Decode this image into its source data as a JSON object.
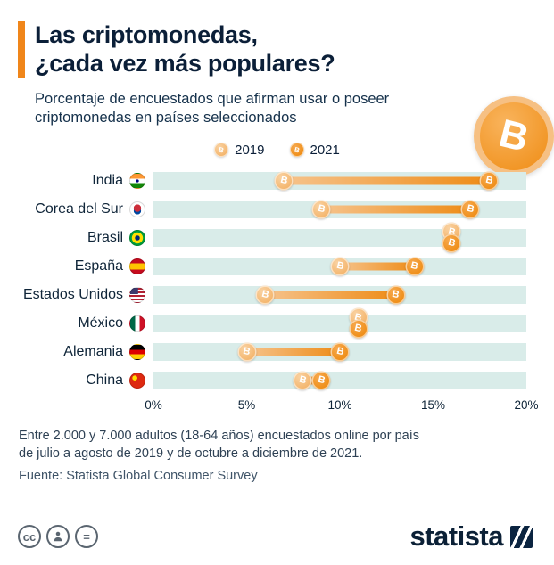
{
  "header": {
    "title_line1": "Las criptomonedas,",
    "title_line2": "¿cada vez más populares?",
    "subtitle": "Porcentaje de encuestados que afirman usar o poseer criptomonedas en países seleccionados"
  },
  "icons": {
    "bitcoin_glyph": "B",
    "license_icons": [
      "cc-icon",
      "attribution-icon",
      "no-derivatives-icon"
    ],
    "cc_glyph": "cc",
    "nd_glyph": "="
  },
  "legend": {
    "items": [
      {
        "label": "2019"
      },
      {
        "label": "2021"
      }
    ]
  },
  "chart_data": {
    "type": "bar",
    "subtype": "dumbbell",
    "title": "Las criptomonedas, ¿cada vez más populares?",
    "xlabel": "",
    "ylabel": "",
    "unit": "%",
    "xlim": [
      0,
      20
    ],
    "x_ticks": [
      "0%",
      "5%",
      "10%",
      "15%",
      "20%"
    ],
    "x_tick_values": [
      0,
      5,
      10,
      15,
      20
    ],
    "grid": false,
    "legend_position": "top-center",
    "categories": [
      "India",
      "Corea del Sur",
      "Brasil",
      "España",
      "Estados Unidos",
      "México",
      "Alemania",
      "China"
    ],
    "flags": [
      "india",
      "south-korea",
      "brazil",
      "spain",
      "usa",
      "mexico",
      "germany",
      "china"
    ],
    "series": [
      {
        "name": "2019",
        "values": [
          7,
          9,
          16,
          10,
          6,
          11,
          5,
          8
        ]
      },
      {
        "name": "2021",
        "values": [
          18,
          17,
          16,
          14,
          13,
          11,
          10,
          9
        ]
      }
    ]
  },
  "footer": {
    "note_line1": "Entre 2.000 y 7.000 adultos (18-64 años) encuestados online por país",
    "note_line2": "de julio a agosto de 2019 y de octubre a diciembre de 2021.",
    "source": "Fuente: Statista Global Consumer Survey"
  },
  "branding": {
    "logo_text": "statista"
  },
  "colors": {
    "accent_orange": "#F0861A",
    "coin_2019": "#F2A956",
    "coin_2021": "#EC8200",
    "stripe": "#D9ECE9",
    "navy": "#0B2036"
  }
}
